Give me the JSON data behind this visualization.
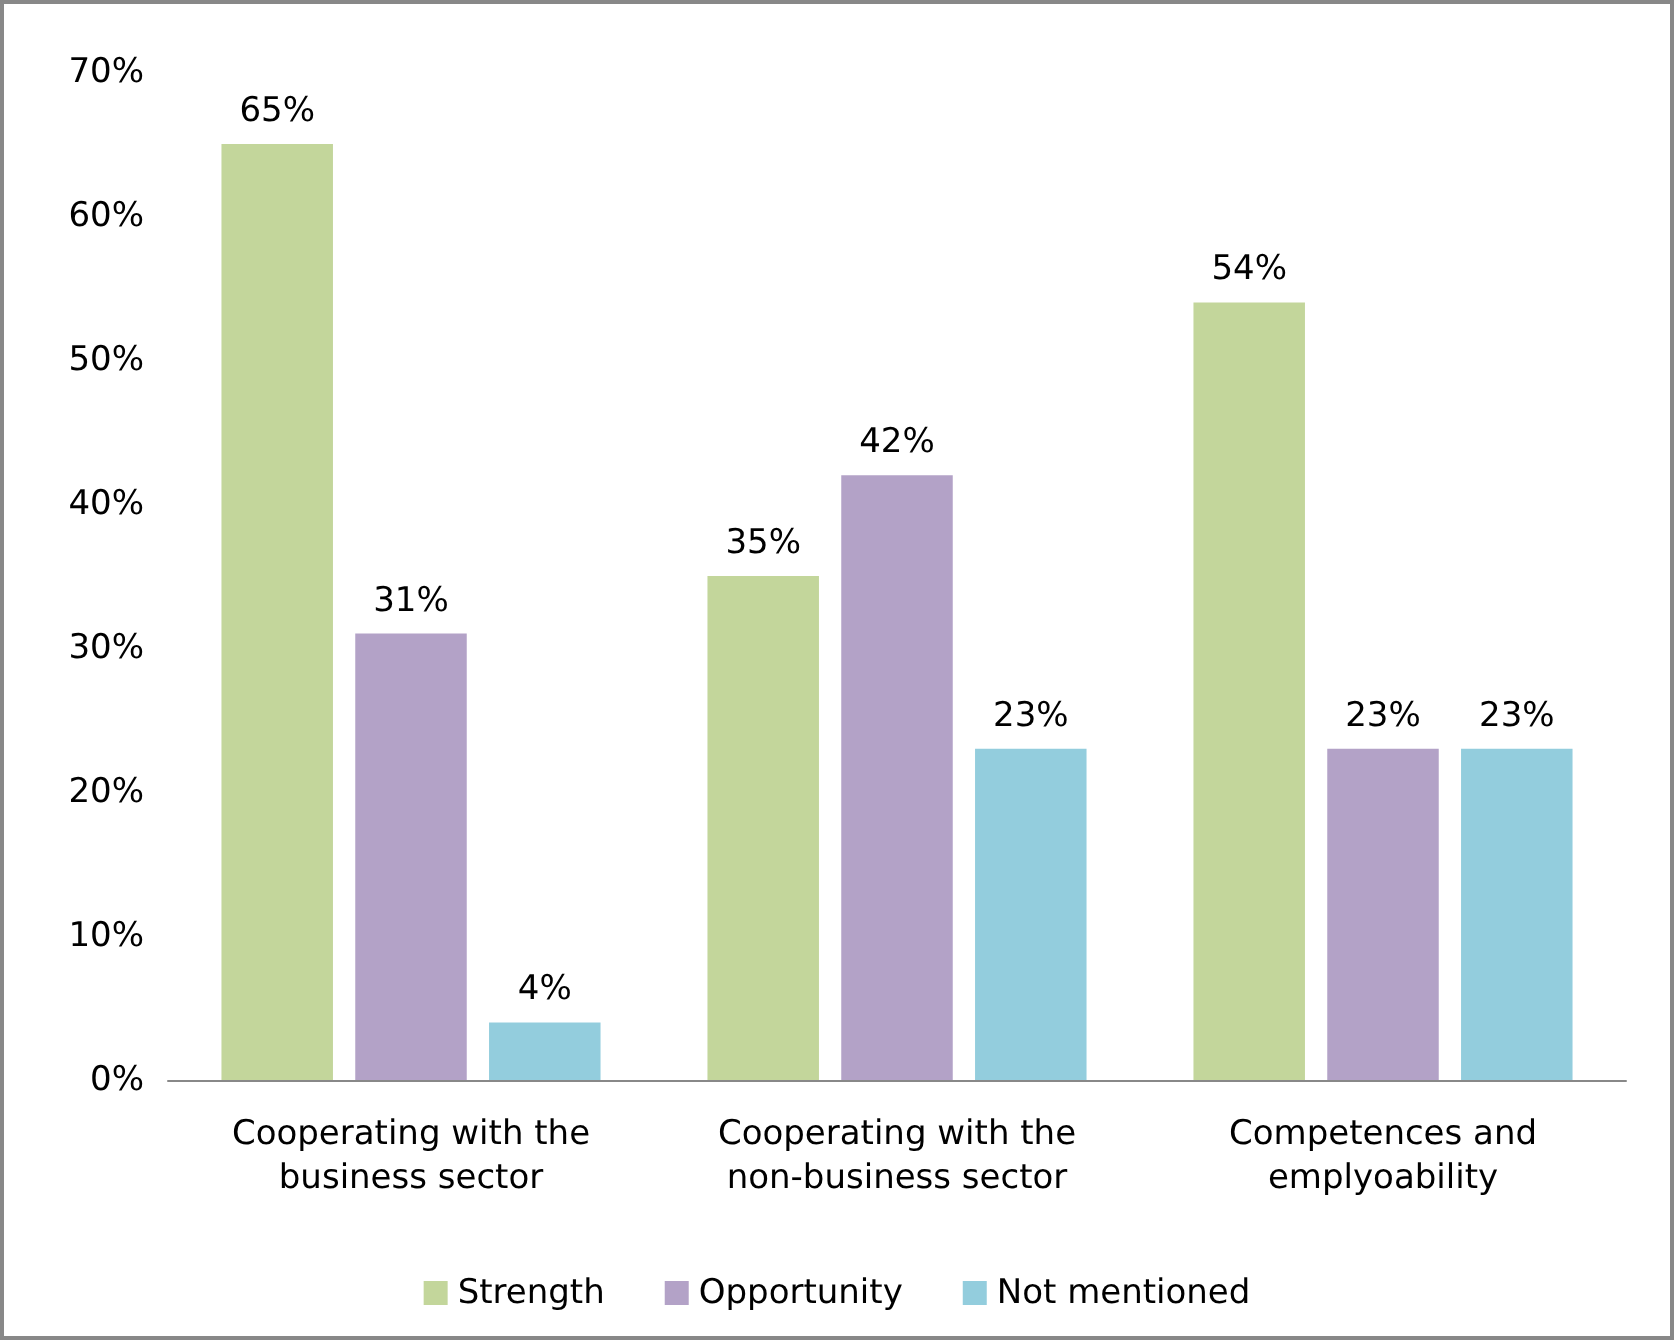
{
  "chart_data": {
    "type": "bar",
    "categories": [
      "Cooperating with the business sector",
      "Cooperating with the non-business sector",
      "Competences and emplyoability"
    ],
    "series": [
      {
        "name": "Strength",
        "color": "#c3d69b",
        "values": [
          65,
          35,
          54
        ],
        "value_labels": [
          "65%",
          "35%",
          "54%"
        ]
      },
      {
        "name": "Opportunity",
        "color": "#b3a2c7",
        "values": [
          31,
          42,
          23
        ],
        "value_labels": [
          "31%",
          "42%",
          "23%"
        ]
      },
      {
        "name": "Not mentioned",
        "color": "#93cddd",
        "values": [
          4,
          23,
          23
        ],
        "value_labels": [
          "4%",
          "23%",
          "23%"
        ]
      }
    ],
    "ylim": [
      0,
      70
    ],
    "yticks": [
      {
        "value": 0,
        "label": "0%"
      },
      {
        "value": 10,
        "label": "10%"
      },
      {
        "value": 20,
        "label": "20%"
      },
      {
        "value": 30,
        "label": "30%"
      },
      {
        "value": 40,
        "label": "40%"
      },
      {
        "value": 50,
        "label": "50%"
      },
      {
        "value": 60,
        "label": "60%"
      },
      {
        "value": 70,
        "label": "70%"
      }
    ],
    "grid": false,
    "legend": "bottom"
  }
}
